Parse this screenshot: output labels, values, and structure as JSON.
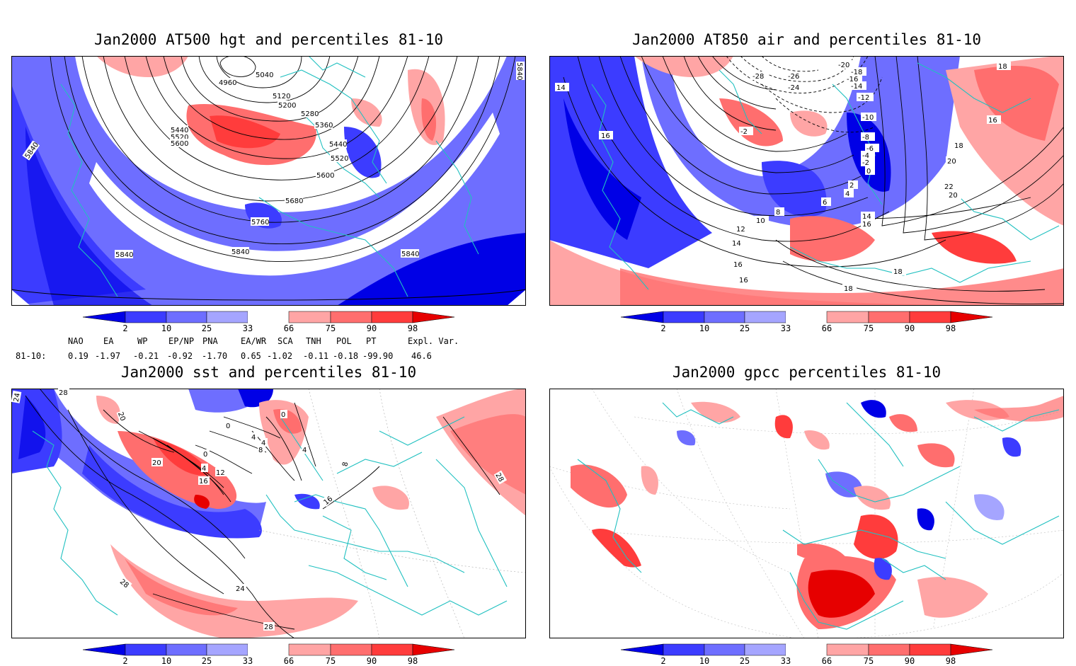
{
  "titles": {
    "p1": "Jan2000 AT500 hgt and percentiles 81-10",
    "p2": "Jan2000 AT850 air and percentiles 81-10",
    "p3": "Jan2000 sst and percentiles 81-10",
    "p4": "Jan2000 gpcc percentiles 81-10"
  },
  "colorbar": {
    "ticks": [
      "2",
      "10",
      "25",
      "33",
      "66",
      "75",
      "90",
      "98"
    ],
    "colors": [
      "#0000e6",
      "#3c3cff",
      "#6e6eff",
      "#a5a5ff",
      "#ffffff",
      "#ffa5a5",
      "#ff6e6e",
      "#ff3c3c",
      "#e60000"
    ]
  },
  "indices": {
    "headers": [
      "NAO",
      "EA",
      "WP",
      "EP/NP",
      "PNA",
      "EA/WR",
      "SCA",
      "TNH",
      "POL",
      "PT",
      "Expl. Var."
    ],
    "row_label": "81-10:",
    "values": [
      "0.19",
      "-1.97",
      "-0.21",
      "-0.92",
      "-1.70",
      "0.65",
      "-1.02",
      "-0.11",
      "-0.18",
      "-99.90",
      "46.6"
    ]
  },
  "contour_labels": {
    "p1": [
      "5840",
      "4960",
      "5040",
      "5120",
      "5200",
      "5280",
      "5360",
      "5440",
      "5520",
      "5600",
      "5440",
      "5520",
      "5600",
      "5680",
      "5760",
      "5840",
      "5840",
      "5840",
      "5840"
    ],
    "p2": [
      "14",
      "16",
      "-28",
      "-26",
      "-24",
      "-20",
      "-18",
      "-16",
      "-14",
      "-12",
      "-2",
      "-10",
      "-8",
      "-6",
      "-4",
      "-2",
      "0",
      "2",
      "4",
      "6",
      "8",
      "10",
      "12",
      "14",
      "16",
      "16",
      "14",
      "16",
      "18",
      "16",
      "18",
      "20",
      "22",
      "20",
      "18",
      "18",
      "16"
    ],
    "p3": [
      "28",
      "24",
      "20",
      "0",
      "0",
      "4",
      "4",
      "8",
      "4",
      "0",
      "20",
      "4",
      "12",
      "16",
      "16",
      "28",
      "28",
      "24",
      "28",
      "8"
    ]
  },
  "colors": {
    "coast": "#20c0c0",
    "accent_title": "#000000"
  }
}
